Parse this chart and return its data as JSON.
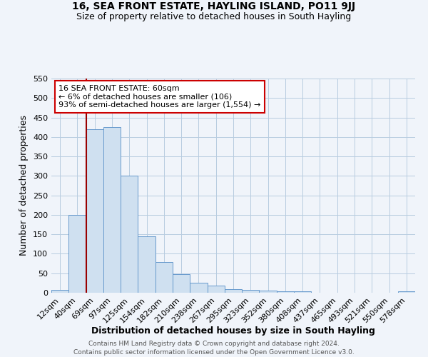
{
  "title": "16, SEA FRONT ESTATE, HAYLING ISLAND, PO11 9JJ",
  "subtitle": "Size of property relative to detached houses in South Hayling",
  "xlabel": "Distribution of detached houses by size in South Hayling",
  "ylabel": "Number of detached properties",
  "categories": [
    "12sqm",
    "40sqm",
    "69sqm",
    "97sqm",
    "125sqm",
    "154sqm",
    "182sqm",
    "210sqm",
    "238sqm",
    "267sqm",
    "295sqm",
    "323sqm",
    "352sqm",
    "380sqm",
    "408sqm",
    "437sqm",
    "465sqm",
    "493sqm",
    "521sqm",
    "550sqm",
    "578sqm"
  ],
  "values": [
    8,
    200,
    420,
    425,
    300,
    145,
    78,
    48,
    25,
    18,
    10,
    8,
    5,
    3,
    3,
    0,
    0,
    0,
    0,
    0,
    4
  ],
  "bar_color": "#cfe0f0",
  "bar_edge_color": "#6699cc",
  "vline_color": "#990000",
  "annotation_line1": "16 SEA FRONT ESTATE: 60sqm",
  "annotation_line2": "← 6% of detached houses are smaller (106)",
  "annotation_line3": "93% of semi-detached houses are larger (1,554) →",
  "annotation_box_color": "#cc0000",
  "ylim": [
    0,
    550
  ],
  "yticks": [
    0,
    50,
    100,
    150,
    200,
    250,
    300,
    350,
    400,
    450,
    500,
    550
  ],
  "footnote1": "Contains HM Land Registry data © Crown copyright and database right 2024.",
  "footnote2": "Contains public sector information licensed under the Open Government Licence v3.0.",
  "title_fontsize": 10,
  "subtitle_fontsize": 9,
  "axis_label_fontsize": 9,
  "tick_fontsize": 8,
  "bg_color": "#f0f4fa",
  "grid_color": "#b8cce0"
}
